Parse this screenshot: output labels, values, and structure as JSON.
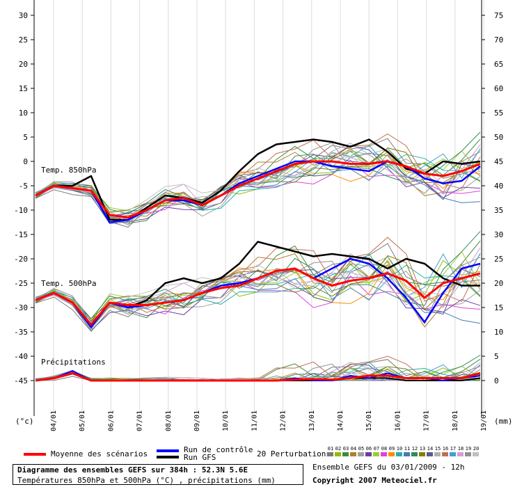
{
  "chart_data": {
    "type": "line",
    "left_axis_unit": "(°c)",
    "right_axis_unit": "(mm)",
    "left_ticks": [
      30,
      25,
      20,
      15,
      10,
      5,
      0,
      -5,
      -10,
      -15,
      -20,
      -25,
      -30,
      -35,
      -40,
      -45
    ],
    "right_ticks": [
      75,
      70,
      65,
      60,
      55,
      50,
      45,
      40,
      35,
      30,
      25,
      20,
      15,
      10,
      5,
      0
    ],
    "dates": [
      "04/01",
      "05/01",
      "06/01",
      "07/01",
      "08/01",
      "09/01",
      "10/01",
      "11/01",
      "12/01",
      "13/01",
      "14/01",
      "15/01",
      "16/01",
      "17/01",
      "18/01",
      "19/01"
    ],
    "section_labels": {
      "t850": "Temp. 850hPa",
      "t500": "Temp. 500hPa",
      "precip": "Précipitations"
    },
    "mean_t850": [
      -7,
      -5,
      -5.5,
      -6,
      -11,
      -11.5,
      -10,
      -8,
      -7.5,
      -9,
      -7,
      -5,
      -3.5,
      -2,
      -0.5,
      0,
      0,
      -0.5,
      -0.5,
      0,
      -1,
      -2.5,
      -3,
      -2,
      -0.5
    ],
    "gfs_t850": [
      -7,
      -5,
      -5,
      -3,
      -12,
      -12,
      -9.5,
      -7,
      -7.5,
      -8.5,
      -6,
      -2,
      1.5,
      3.5,
      4,
      4.5,
      4,
      3,
      4.5,
      2,
      -1.5,
      -2.5,
      0,
      -0.5,
      0
    ],
    "control_t850": [
      -7,
      -5,
      -5.5,
      -6,
      -12.5,
      -12,
      -10,
      -8,
      -8,
      -9,
      -7,
      -4.5,
      -3,
      -1.5,
      0,
      0,
      -1,
      -1.5,
      -2,
      0,
      -1,
      -3.5,
      -4.5,
      -4,
      -1
    ],
    "mean_t500": [
      -28.5,
      -27,
      -29,
      -33.5,
      -29,
      -29.5,
      -29.5,
      -29,
      -28.5,
      -27,
      -26,
      -25.5,
      -24,
      -22.5,
      -22,
      -24,
      -25.5,
      -24.5,
      -24,
      -23,
      -24.5,
      -28,
      -25,
      -24,
      -23
    ],
    "gfs_t500": [
      -28.5,
      -27,
      -29,
      -34,
      -29,
      -30,
      -28.5,
      -25,
      -24,
      -25,
      -24,
      -21,
      -16.5,
      -17.5,
      -18.5,
      -19.5,
      -19,
      -19.5,
      -20,
      -22,
      -20,
      -21,
      -24,
      -25.5,
      -25.5
    ],
    "control_t500": [
      -28.5,
      -27,
      -29,
      -34,
      -29,
      -30,
      -29.5,
      -29,
      -28.5,
      -27,
      -25.5,
      -25,
      -24,
      -22.5,
      -22,
      -24,
      -22,
      -20,
      -21,
      -24,
      -28,
      -33,
      -27,
      -22,
      -21
    ],
    "mean_precip": [
      0,
      0.5,
      1.5,
      0,
      0,
      0,
      0,
      0,
      0,
      0,
      0,
      0,
      0,
      0,
      0.2,
      0.3,
      0.2,
      0.5,
      1,
      1,
      0.5,
      0.5,
      0.5,
      0.5,
      1.5
    ],
    "gfs_precip": [
      0,
      0.5,
      1.5,
      0,
      0,
      0,
      0,
      0,
      0,
      0,
      0,
      0,
      0,
      0,
      0,
      0,
      0,
      0.5,
      0.5,
      0.5,
      0,
      0,
      0,
      0,
      0.5
    ],
    "control_precip": [
      0,
      0.5,
      2,
      0,
      0,
      0,
      0,
      0,
      0,
      0,
      0,
      0,
      0,
      0,
      0.5,
      0,
      0,
      1,
      0.5,
      1.5,
      0.5,
      0.5,
      0,
      0.5,
      1
    ]
  },
  "legend": {
    "mean": "Moyenne des scénarios",
    "control": "Run de contrôle",
    "gfs": "Run GFS",
    "perturbations": "20 Perturbations",
    "perturbation_numbers": [
      "01",
      "02",
      "03",
      "04",
      "05",
      "06",
      "07",
      "08",
      "09",
      "10",
      "11",
      "12",
      "13",
      "14",
      "15",
      "16",
      "17",
      "18",
      "19",
      "20"
    ],
    "perturbation_colors": [
      "#7a7a7a",
      "#8fbc00",
      "#3c8c3c",
      "#b08030",
      "#a0a0a0",
      "#6b3fa0",
      "#9acd32",
      "#e040e0",
      "#ff8c00",
      "#20b2aa",
      "#4a7ab0",
      "#2e8b57",
      "#808000",
      "#5a5a8a",
      "#b0b0b0",
      "#c07050",
      "#40a0d0",
      "#d0a0d0",
      "#909090",
      "#c0c0c0"
    ],
    "colors": {
      "mean": "#ff0000",
      "control": "#0000ff",
      "gfs": "#000000"
    }
  },
  "info": {
    "title": "Diagramme des ensembles GEFS sur 384h : 52.3N 5.6E",
    "subtitle": "Températures 850hPa et 500hPa (°C) , précipitations (mm)",
    "ensemble_run": "Ensemble GEFS du 03/01/2009 - 12h",
    "copyright": "Copyright 2007 Meteociel.fr"
  }
}
